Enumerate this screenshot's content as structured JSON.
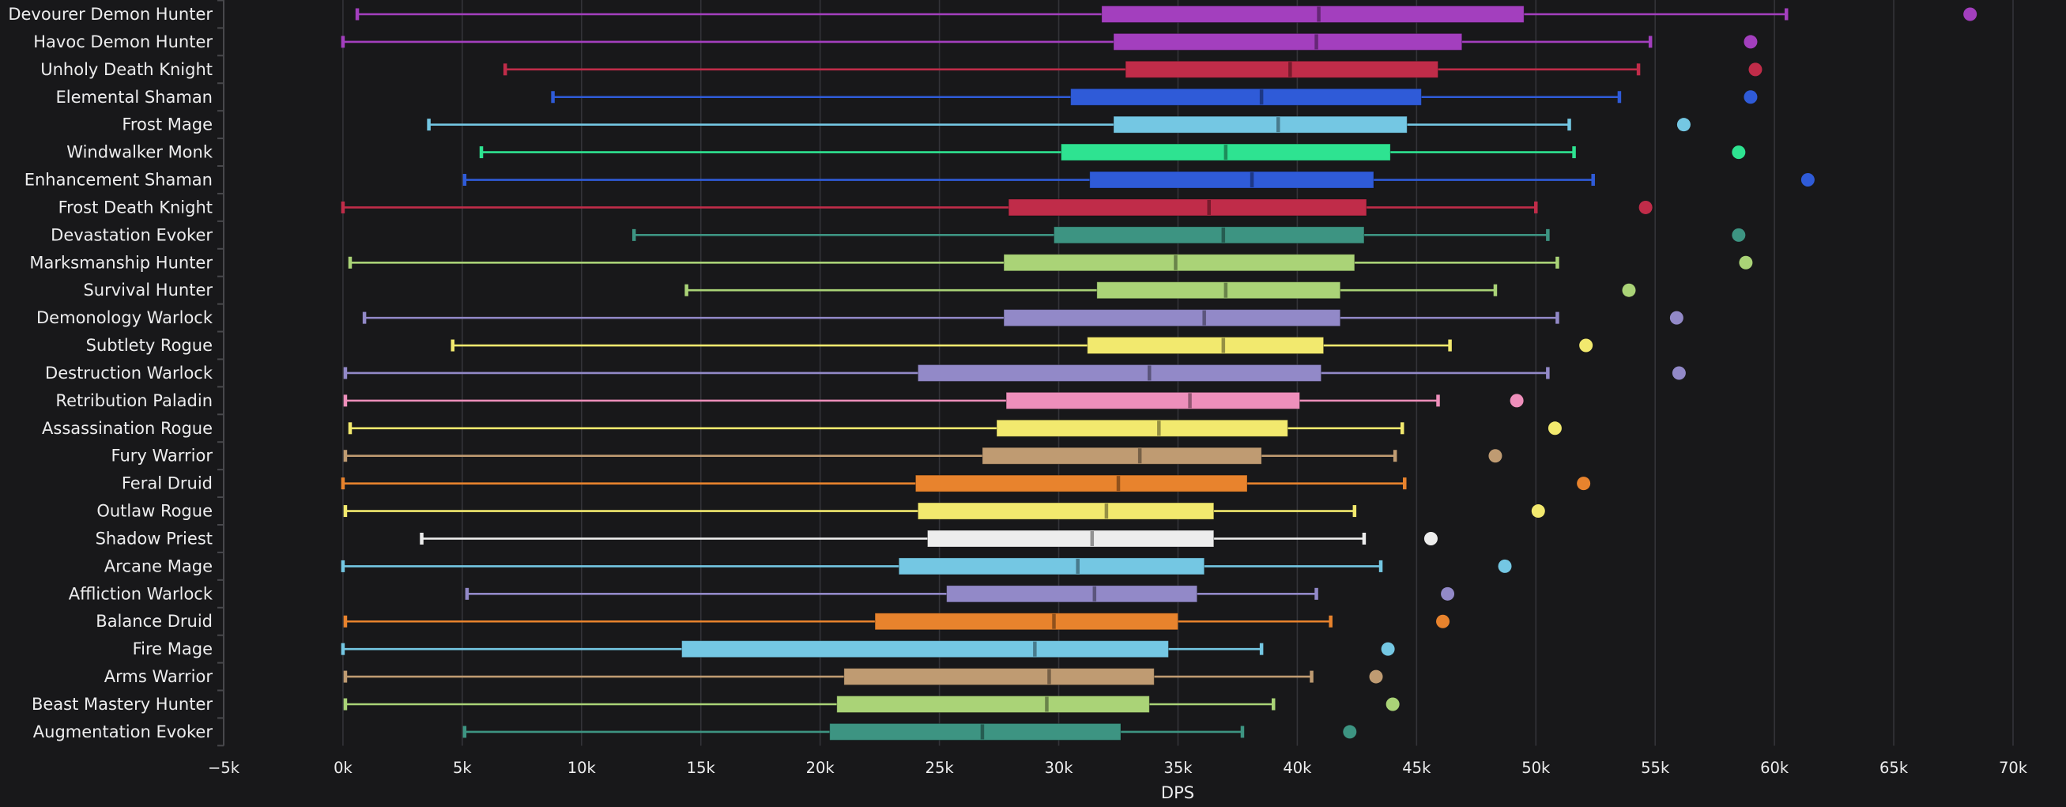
{
  "theme": {
    "background": "#18181a",
    "grid_color": "#333338",
    "axis_line_color": "#48484c",
    "tick_color": "#48484c",
    "text_color": "#ededee"
  },
  "axes": {
    "x_title": "DPS",
    "x_tick_labels": [
      "−5k",
      "0k",
      "5k",
      "10k",
      "15k",
      "20k",
      "25k",
      "30k",
      "35k",
      "40k",
      "45k",
      "50k",
      "55k",
      "60k",
      "65k",
      "70k"
    ],
    "x_tick_values_k": [
      -5,
      0,
      5,
      10,
      15,
      20,
      25,
      30,
      35,
      40,
      45,
      50,
      55,
      60,
      65,
      70
    ]
  },
  "chart_data": {
    "type": "boxplot-horizontal",
    "title": "",
    "xlabel": "DPS",
    "value_unit": "thousands of DPS (k)",
    "xlim_k": [
      -5,
      70
    ],
    "grid": true,
    "rows": [
      {
        "label": "Devourer Demon Hunter",
        "class": "Demon Hunter",
        "color": "#a33fbe",
        "min": 0.6,
        "q1": 31.8,
        "median": 40.9,
        "q3": 49.5,
        "max": 60.5,
        "outliers": [
          68.2
        ]
      },
      {
        "label": "Havoc Demon Hunter",
        "class": "Demon Hunter",
        "color": "#a33fbe",
        "min": 0.0,
        "q1": 32.3,
        "median": 40.8,
        "q3": 46.9,
        "max": 54.8,
        "outliers": [
          59.0
        ]
      },
      {
        "label": "Unholy Death Knight",
        "class": "Death Knight",
        "color": "#c02c49",
        "min": 6.8,
        "q1": 32.8,
        "median": 39.7,
        "q3": 45.9,
        "max": 54.3,
        "outliers": [
          59.2
        ]
      },
      {
        "label": "Elemental Shaman",
        "class": "Shaman",
        "color": "#2f5bd8",
        "min": 8.8,
        "q1": 30.5,
        "median": 38.5,
        "q3": 45.2,
        "max": 53.5,
        "outliers": [
          59.0
        ]
      },
      {
        "label": "Frost Mage",
        "class": "Mage",
        "color": "#74c7e3",
        "min": 3.6,
        "q1": 32.3,
        "median": 39.2,
        "q3": 44.6,
        "max": 51.4,
        "outliers": [
          56.2
        ]
      },
      {
        "label": "Windwalker Monk",
        "class": "Monk",
        "color": "#2ee391",
        "min": 5.8,
        "q1": 30.1,
        "median": 37.0,
        "q3": 43.9,
        "max": 51.6,
        "outliers": [
          58.5
        ]
      },
      {
        "label": "Enhancement Shaman",
        "class": "Shaman",
        "color": "#2f5bd8",
        "min": 5.1,
        "q1": 31.3,
        "median": 38.1,
        "q3": 43.2,
        "max": 52.4,
        "outliers": [
          61.4
        ]
      },
      {
        "label": "Frost Death Knight",
        "class": "Death Knight",
        "color": "#c02c49",
        "min": 0.0,
        "q1": 27.9,
        "median": 36.3,
        "q3": 42.9,
        "max": 50.0,
        "outliers": [
          54.6
        ]
      },
      {
        "label": "Devastation Evoker",
        "class": "Evoker",
        "color": "#3d9482",
        "min": 12.2,
        "q1": 29.8,
        "median": 36.9,
        "q3": 42.8,
        "max": 50.5,
        "outliers": [
          58.5
        ]
      },
      {
        "label": "Marksmanship Hunter",
        "class": "Hunter",
        "color": "#aad377",
        "min": 0.3,
        "q1": 27.7,
        "median": 34.9,
        "q3": 42.4,
        "max": 50.9,
        "outliers": [
          58.8
        ]
      },
      {
        "label": "Survival Hunter",
        "class": "Hunter",
        "color": "#aad377",
        "min": 14.4,
        "q1": 31.6,
        "median": 37.0,
        "q3": 41.8,
        "max": 48.3,
        "outliers": [
          53.9
        ]
      },
      {
        "label": "Demonology Warlock",
        "class": "Warlock",
        "color": "#9289c8",
        "min": 0.9,
        "q1": 27.7,
        "median": 36.1,
        "q3": 41.8,
        "max": 50.9,
        "outliers": [
          55.9
        ]
      },
      {
        "label": "Subtlety Rogue",
        "class": "Rogue",
        "color": "#f2e96e",
        "min": 4.6,
        "q1": 31.2,
        "median": 36.9,
        "q3": 41.1,
        "max": 46.4,
        "outliers": [
          52.1
        ]
      },
      {
        "label": "Destruction Warlock",
        "class": "Warlock",
        "color": "#9289c8",
        "min": 0.1,
        "q1": 24.1,
        "median": 33.8,
        "q3": 41.0,
        "max": 50.5,
        "outliers": [
          56.0
        ]
      },
      {
        "label": "Retribution Paladin",
        "class": "Paladin",
        "color": "#ee8fbb",
        "min": 0.1,
        "q1": 27.8,
        "median": 35.5,
        "q3": 40.1,
        "max": 45.9,
        "outliers": [
          49.2
        ]
      },
      {
        "label": "Assassination Rogue",
        "class": "Rogue",
        "color": "#f2e96e",
        "min": 0.3,
        "q1": 27.4,
        "median": 34.2,
        "q3": 39.6,
        "max": 44.4,
        "outliers": [
          50.8
        ]
      },
      {
        "label": "Fury Warrior",
        "class": "Warrior",
        "color": "#bf9b72",
        "min": 0.1,
        "q1": 26.8,
        "median": 33.4,
        "q3": 38.5,
        "max": 44.1,
        "outliers": [
          48.3
        ]
      },
      {
        "label": "Feral Druid",
        "class": "Druid",
        "color": "#e8832d",
        "min": 0.0,
        "q1": 24.0,
        "median": 32.5,
        "q3": 37.9,
        "max": 44.5,
        "outliers": [
          52.0
        ]
      },
      {
        "label": "Outlaw Rogue",
        "class": "Rogue",
        "color": "#f2e96e",
        "min": 0.1,
        "q1": 24.1,
        "median": 32.0,
        "q3": 36.5,
        "max": 42.4,
        "outliers": [
          50.1
        ]
      },
      {
        "label": "Shadow Priest",
        "class": "Priest",
        "color": "#ededed",
        "min": 3.3,
        "q1": 24.5,
        "median": 31.4,
        "q3": 36.5,
        "max": 42.8,
        "outliers": [
          45.6
        ]
      },
      {
        "label": "Arcane Mage",
        "class": "Mage",
        "color": "#74c7e3",
        "min": 0.0,
        "q1": 23.3,
        "median": 30.8,
        "q3": 36.1,
        "max": 43.5,
        "outliers": [
          48.7
        ]
      },
      {
        "label": "Affliction Warlock",
        "class": "Warlock",
        "color": "#9289c8",
        "min": 5.2,
        "q1": 25.3,
        "median": 31.5,
        "q3": 35.8,
        "max": 40.8,
        "outliers": [
          46.3
        ]
      },
      {
        "label": "Balance Druid",
        "class": "Druid",
        "color": "#e8832d",
        "min": 0.1,
        "q1": 22.3,
        "median": 29.8,
        "q3": 35.0,
        "max": 41.4,
        "outliers": [
          46.1
        ]
      },
      {
        "label": "Fire Mage",
        "class": "Mage",
        "color": "#74c7e3",
        "min": 0.0,
        "q1": 14.2,
        "median": 29.0,
        "q3": 34.6,
        "max": 38.5,
        "outliers": [
          43.8
        ]
      },
      {
        "label": "Arms Warrior",
        "class": "Warrior",
        "color": "#bf9b72",
        "min": 0.1,
        "q1": 21.0,
        "median": 29.6,
        "q3": 34.0,
        "max": 40.6,
        "outliers": [
          43.3
        ]
      },
      {
        "label": "Beast Mastery Hunter",
        "class": "Hunter",
        "color": "#aad377",
        "min": 0.1,
        "q1": 20.7,
        "median": 29.5,
        "q3": 33.8,
        "max": 39.0,
        "outliers": [
          44.0
        ]
      },
      {
        "label": "Augmentation Evoker",
        "class": "Evoker",
        "color": "#3d9482",
        "min": 5.1,
        "q1": 20.4,
        "median": 26.8,
        "q3": 32.6,
        "max": 37.7,
        "outliers": [
          42.2
        ]
      }
    ]
  }
}
